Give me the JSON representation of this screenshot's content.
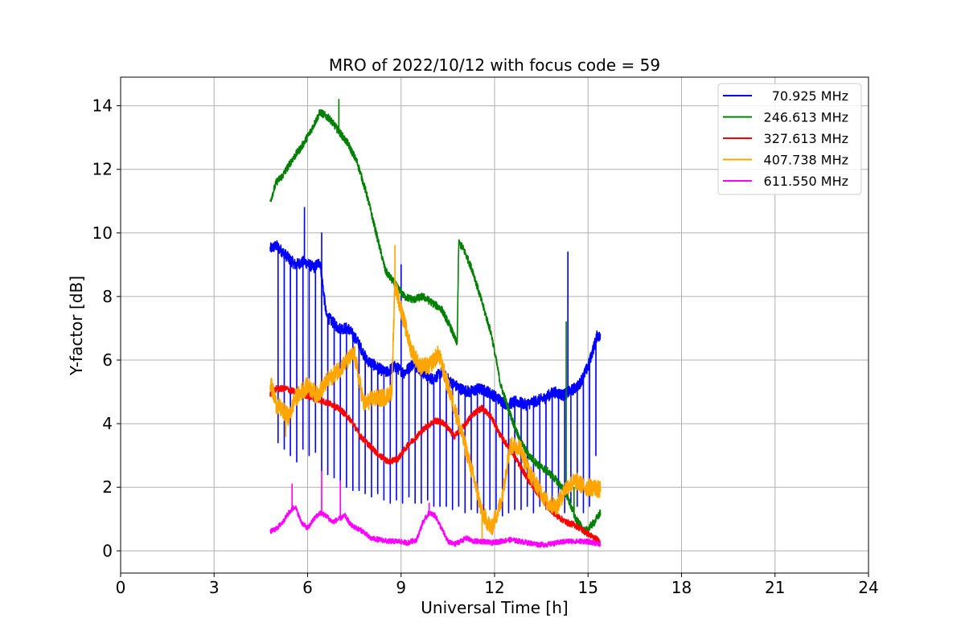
{
  "chart_data": {
    "type": "line",
    "title": "MRO of 2022/10/12 with focus code = 59",
    "xlabel": "Universal Time [h]",
    "ylabel": "Y-factor [dB]",
    "xlim": [
      0,
      24
    ],
    "ylim": [
      -0.7,
      14.9
    ],
    "xticks": [
      0,
      3,
      6,
      9,
      12,
      15,
      18,
      21,
      24
    ],
    "yticks": [
      0,
      2,
      4,
      6,
      8,
      10,
      12,
      14
    ],
    "grid": true,
    "legend_position": "top-right",
    "series": [
      {
        "name": "70.925 MHz",
        "color": "#0000ff",
        "x": [
          4.8,
          5.0,
          5.3,
          5.6,
          5.9,
          6.2,
          6.4,
          6.6,
          6.8,
          7.0,
          7.3,
          7.6,
          7.9,
          8.2,
          8.5,
          8.8,
          9.1,
          9.4,
          9.7,
          10.0,
          10.3,
          10.6,
          10.9,
          11.2,
          11.5,
          11.8,
          12.1,
          12.4,
          12.7,
          13.0,
          13.3,
          13.6,
          13.9,
          14.2,
          14.4,
          14.7,
          15.0,
          15.3,
          15.4
        ],
        "y": [
          9.5,
          9.6,
          9.3,
          9.0,
          9.1,
          8.9,
          9.1,
          7.4,
          7.2,
          7.0,
          7.0,
          6.6,
          6.0,
          5.8,
          5.6,
          5.8,
          5.6,
          5.9,
          5.6,
          5.4,
          5.6,
          5.3,
          5.1,
          5.0,
          5.1,
          5.0,
          4.8,
          4.6,
          4.7,
          4.6,
          4.7,
          4.8,
          5.0,
          4.9,
          5.0,
          5.2,
          5.8,
          6.8,
          6.7
        ],
        "dips": [
          [
            5.05,
            3.4
          ],
          [
            5.25,
            3.2
          ],
          [
            5.45,
            3.0
          ],
          [
            5.65,
            2.8
          ],
          [
            5.85,
            3.2
          ],
          [
            6.05,
            3.0
          ],
          [
            6.25,
            3.1
          ],
          [
            6.45,
            2.5
          ],
          [
            6.65,
            2.4
          ],
          [
            6.85,
            2.3
          ],
          [
            7.05,
            2.1
          ],
          [
            7.25,
            2.0
          ],
          [
            7.45,
            1.9
          ],
          [
            7.65,
            1.9
          ],
          [
            7.85,
            1.8
          ],
          [
            8.05,
            1.7
          ],
          [
            8.25,
            1.8
          ],
          [
            8.45,
            1.6
          ],
          [
            8.65,
            1.5
          ],
          [
            8.85,
            1.6
          ],
          [
            9.05,
            1.5
          ],
          [
            9.25,
            1.7
          ],
          [
            9.45,
            1.5
          ],
          [
            9.65,
            1.5
          ],
          [
            9.85,
            1.6
          ],
          [
            10.05,
            1.4
          ],
          [
            10.25,
            1.4
          ],
          [
            10.45,
            1.4
          ],
          [
            10.65,
            1.3
          ],
          [
            10.85,
            1.4
          ],
          [
            11.05,
            1.2
          ],
          [
            11.25,
            1.3
          ],
          [
            11.45,
            1.2
          ],
          [
            11.65,
            1.2
          ],
          [
            11.85,
            1.3
          ],
          [
            12.05,
            1.3
          ],
          [
            12.25,
            1.1
          ],
          [
            12.45,
            1.2
          ],
          [
            12.65,
            1.3
          ],
          [
            12.85,
            1.3
          ],
          [
            13.05,
            1.4
          ],
          [
            13.25,
            1.2
          ],
          [
            13.45,
            1.4
          ],
          [
            13.65,
            1.3
          ],
          [
            13.85,
            1.3
          ],
          [
            14.05,
            1.3
          ],
          [
            14.25,
            1.2
          ],
          [
            14.45,
            1.5
          ],
          [
            14.65,
            1.4
          ],
          [
            14.85,
            1.2
          ],
          [
            15.05,
            1.4
          ],
          [
            15.25,
            3.0
          ]
        ],
        "spikes": [
          [
            5.9,
            10.8
          ],
          [
            6.45,
            10.0
          ],
          [
            9.0,
            9.0
          ],
          [
            14.35,
            9.4
          ]
        ]
      },
      {
        "name": "246.613 MHz",
        "color": "#008000",
        "x": [
          4.8,
          5.0,
          5.2,
          5.5,
          5.8,
          6.1,
          6.4,
          6.7,
          7.0,
          7.3,
          7.6,
          7.9,
          8.2,
          8.5,
          8.8,
          9.1,
          9.4,
          9.7,
          10.0,
          10.3,
          10.6,
          10.8,
          10.85,
          11.0,
          11.3,
          11.6,
          11.9,
          12.2,
          12.5,
          12.8,
          13.1,
          13.4,
          13.7,
          14.0,
          14.3,
          14.6,
          14.9,
          15.2,
          15.4
        ],
        "y": [
          11.0,
          11.6,
          11.8,
          12.3,
          12.7,
          13.2,
          13.8,
          13.6,
          13.2,
          12.8,
          12.2,
          11.2,
          10.0,
          8.8,
          8.4,
          8.0,
          7.9,
          8.0,
          7.8,
          7.6,
          7.0,
          6.5,
          9.7,
          9.5,
          8.8,
          7.8,
          6.8,
          5.2,
          4.3,
          3.5,
          3.0,
          2.7,
          2.5,
          2.2,
          1.8,
          1.0,
          0.6,
          0.9,
          1.2
        ],
        "dips": [],
        "spikes": [
          [
            7.0,
            14.2
          ],
          [
            14.3,
            7.2
          ],
          [
            14.55,
            2.0
          ]
        ]
      },
      {
        "name": "327.613 MHz",
        "color": "#ff0000",
        "x": [
          4.8,
          5.0,
          5.3,
          5.6,
          5.9,
          6.2,
          6.5,
          6.8,
          7.1,
          7.4,
          7.7,
          8.0,
          8.3,
          8.6,
          8.9,
          9.2,
          9.5,
          9.8,
          10.1,
          10.4,
          10.7,
          11.0,
          11.3,
          11.6,
          11.9,
          12.2,
          12.5,
          12.8,
          13.1,
          13.4,
          13.7,
          14.0,
          14.3,
          14.6,
          14.9,
          15.2,
          15.4
        ],
        "y": [
          4.9,
          5.1,
          5.1,
          5.0,
          4.9,
          4.8,
          4.7,
          4.6,
          4.4,
          4.1,
          3.6,
          3.3,
          3.0,
          2.8,
          2.9,
          3.3,
          3.6,
          3.9,
          4.1,
          4.0,
          3.6,
          3.9,
          4.3,
          4.5,
          4.2,
          3.6,
          3.2,
          2.7,
          2.2,
          1.8,
          1.4,
          1.1,
          0.9,
          0.8,
          0.6,
          0.4,
          0.3
        ],
        "dips": [],
        "spikes": []
      },
      {
        "name": "407.738 MHz",
        "color": "#ffa500",
        "x": [
          4.8,
          5.0,
          5.2,
          5.4,
          5.6,
          5.8,
          6.0,
          6.3,
          6.6,
          6.9,
          7.2,
          7.5,
          7.8,
          8.1,
          8.4,
          8.7,
          8.8,
          9.0,
          9.3,
          9.6,
          9.9,
          10.2,
          10.5,
          10.8,
          11.0,
          11.3,
          11.6,
          11.9,
          12.2,
          12.5,
          12.8,
          13.1,
          13.4,
          13.7,
          14.0,
          14.3,
          14.6,
          14.9,
          15.2,
          15.4
        ],
        "y": [
          5.3,
          4.6,
          4.4,
          4.2,
          4.8,
          5.0,
          5.2,
          4.9,
          5.3,
          5.6,
          5.9,
          6.2,
          4.6,
          4.8,
          4.8,
          5.0,
          8.4,
          7.6,
          6.4,
          5.8,
          5.8,
          6.2,
          5.2,
          4.2,
          3.5,
          2.4,
          1.2,
          0.7,
          1.5,
          3.3,
          3.3,
          2.5,
          2.0,
          1.5,
          1.4,
          2.0,
          2.2,
          2.0,
          2.0,
          1.9
        ],
        "dips": [],
        "spikes": [
          [
            8.8,
            9.6
          ],
          [
            5.3,
            3.6
          ],
          [
            11.6,
            0.2
          ]
        ]
      },
      {
        "name": "611.550 MHz",
        "color": "#ff00ff",
        "x": [
          4.8,
          5.0,
          5.2,
          5.4,
          5.6,
          5.8,
          6.0,
          6.2,
          6.4,
          6.6,
          6.8,
          7.0,
          7.2,
          7.4,
          7.6,
          7.8,
          8.0,
          8.3,
          8.6,
          8.9,
          9.2,
          9.5,
          9.7,
          9.9,
          10.1,
          10.3,
          10.5,
          10.7,
          10.9,
          11.1,
          11.3,
          11.6,
          11.9,
          12.2,
          12.5,
          12.8,
          13.1,
          13.4,
          13.7,
          14.0,
          14.3,
          14.6,
          14.9,
          15.2,
          15.4
        ],
        "y": [
          0.6,
          0.7,
          0.9,
          1.2,
          1.4,
          0.9,
          0.7,
          1.0,
          1.2,
          1.1,
          0.9,
          1.0,
          1.1,
          0.8,
          0.7,
          0.6,
          0.4,
          0.35,
          0.3,
          0.3,
          0.25,
          0.35,
          0.9,
          1.2,
          1.1,
          0.7,
          0.3,
          0.2,
          0.3,
          0.4,
          0.3,
          0.3,
          0.25,
          0.3,
          0.35,
          0.3,
          0.25,
          0.2,
          0.2,
          0.25,
          0.3,
          0.3,
          0.3,
          0.25,
          0.2
        ],
        "dips": [],
        "spikes": [
          [
            5.5,
            2.1
          ],
          [
            6.45,
            2.5
          ],
          [
            7.05,
            2.2
          ],
          [
            9.9,
            1.5
          ]
        ]
      }
    ]
  }
}
